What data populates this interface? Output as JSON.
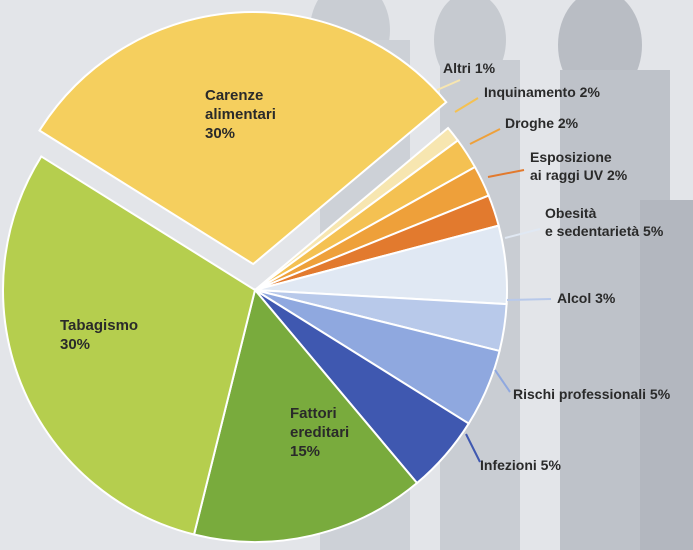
{
  "chart_data": {
    "type": "pie",
    "title": "",
    "slices": [
      {
        "label_lines": [
          "Carenze",
          "alimentari",
          "30%"
        ],
        "name": "Carenze alimentari",
        "value": 30,
        "color": "#f5cf5e",
        "exploded": true
      },
      {
        "label_lines": [
          "Altri 1%"
        ],
        "name": "Altri",
        "value": 1,
        "color": "#f7e6b0"
      },
      {
        "label_lines": [
          "Inquinamento 2%"
        ],
        "name": "Inquinamento",
        "value": 2,
        "color": "#f4c152"
      },
      {
        "label_lines": [
          "Droghe 2%"
        ],
        "name": "Droghe",
        "value": 2,
        "color": "#eea03a"
      },
      {
        "label_lines": [
          "Esposizione",
          "ai raggi UV 2%"
        ],
        "name": "Esposizione ai raggi UV",
        "value": 2,
        "color": "#e27a2e"
      },
      {
        "label_lines": [
          "Obesità",
          "e sedentarietà 5%"
        ],
        "name": "Obesità e sedentarietà",
        "value": 5,
        "color": "#e0e8f3"
      },
      {
        "label_lines": [
          "Alcol 3%"
        ],
        "name": "Alcol",
        "value": 3,
        "color": "#b8c9ea"
      },
      {
        "label_lines": [
          "Rischi professionali 5%"
        ],
        "name": "Rischi professionali",
        "value": 5,
        "color": "#8fa8df"
      },
      {
        "label_lines": [
          "Infezioni 5%"
        ],
        "name": "Infezioni",
        "value": 5,
        "color": "#3f58b0"
      },
      {
        "label_lines": [
          "Fattori",
          "ereditari",
          "15%"
        ],
        "name": "Fattori ereditari",
        "value": 15,
        "color": "#79ab3d"
      },
      {
        "label_lines": [
          "Tabagismo",
          "30%"
        ],
        "name": "Tabagismo",
        "value": 30,
        "color": "#b5ce4e"
      }
    ],
    "legend": "none"
  }
}
